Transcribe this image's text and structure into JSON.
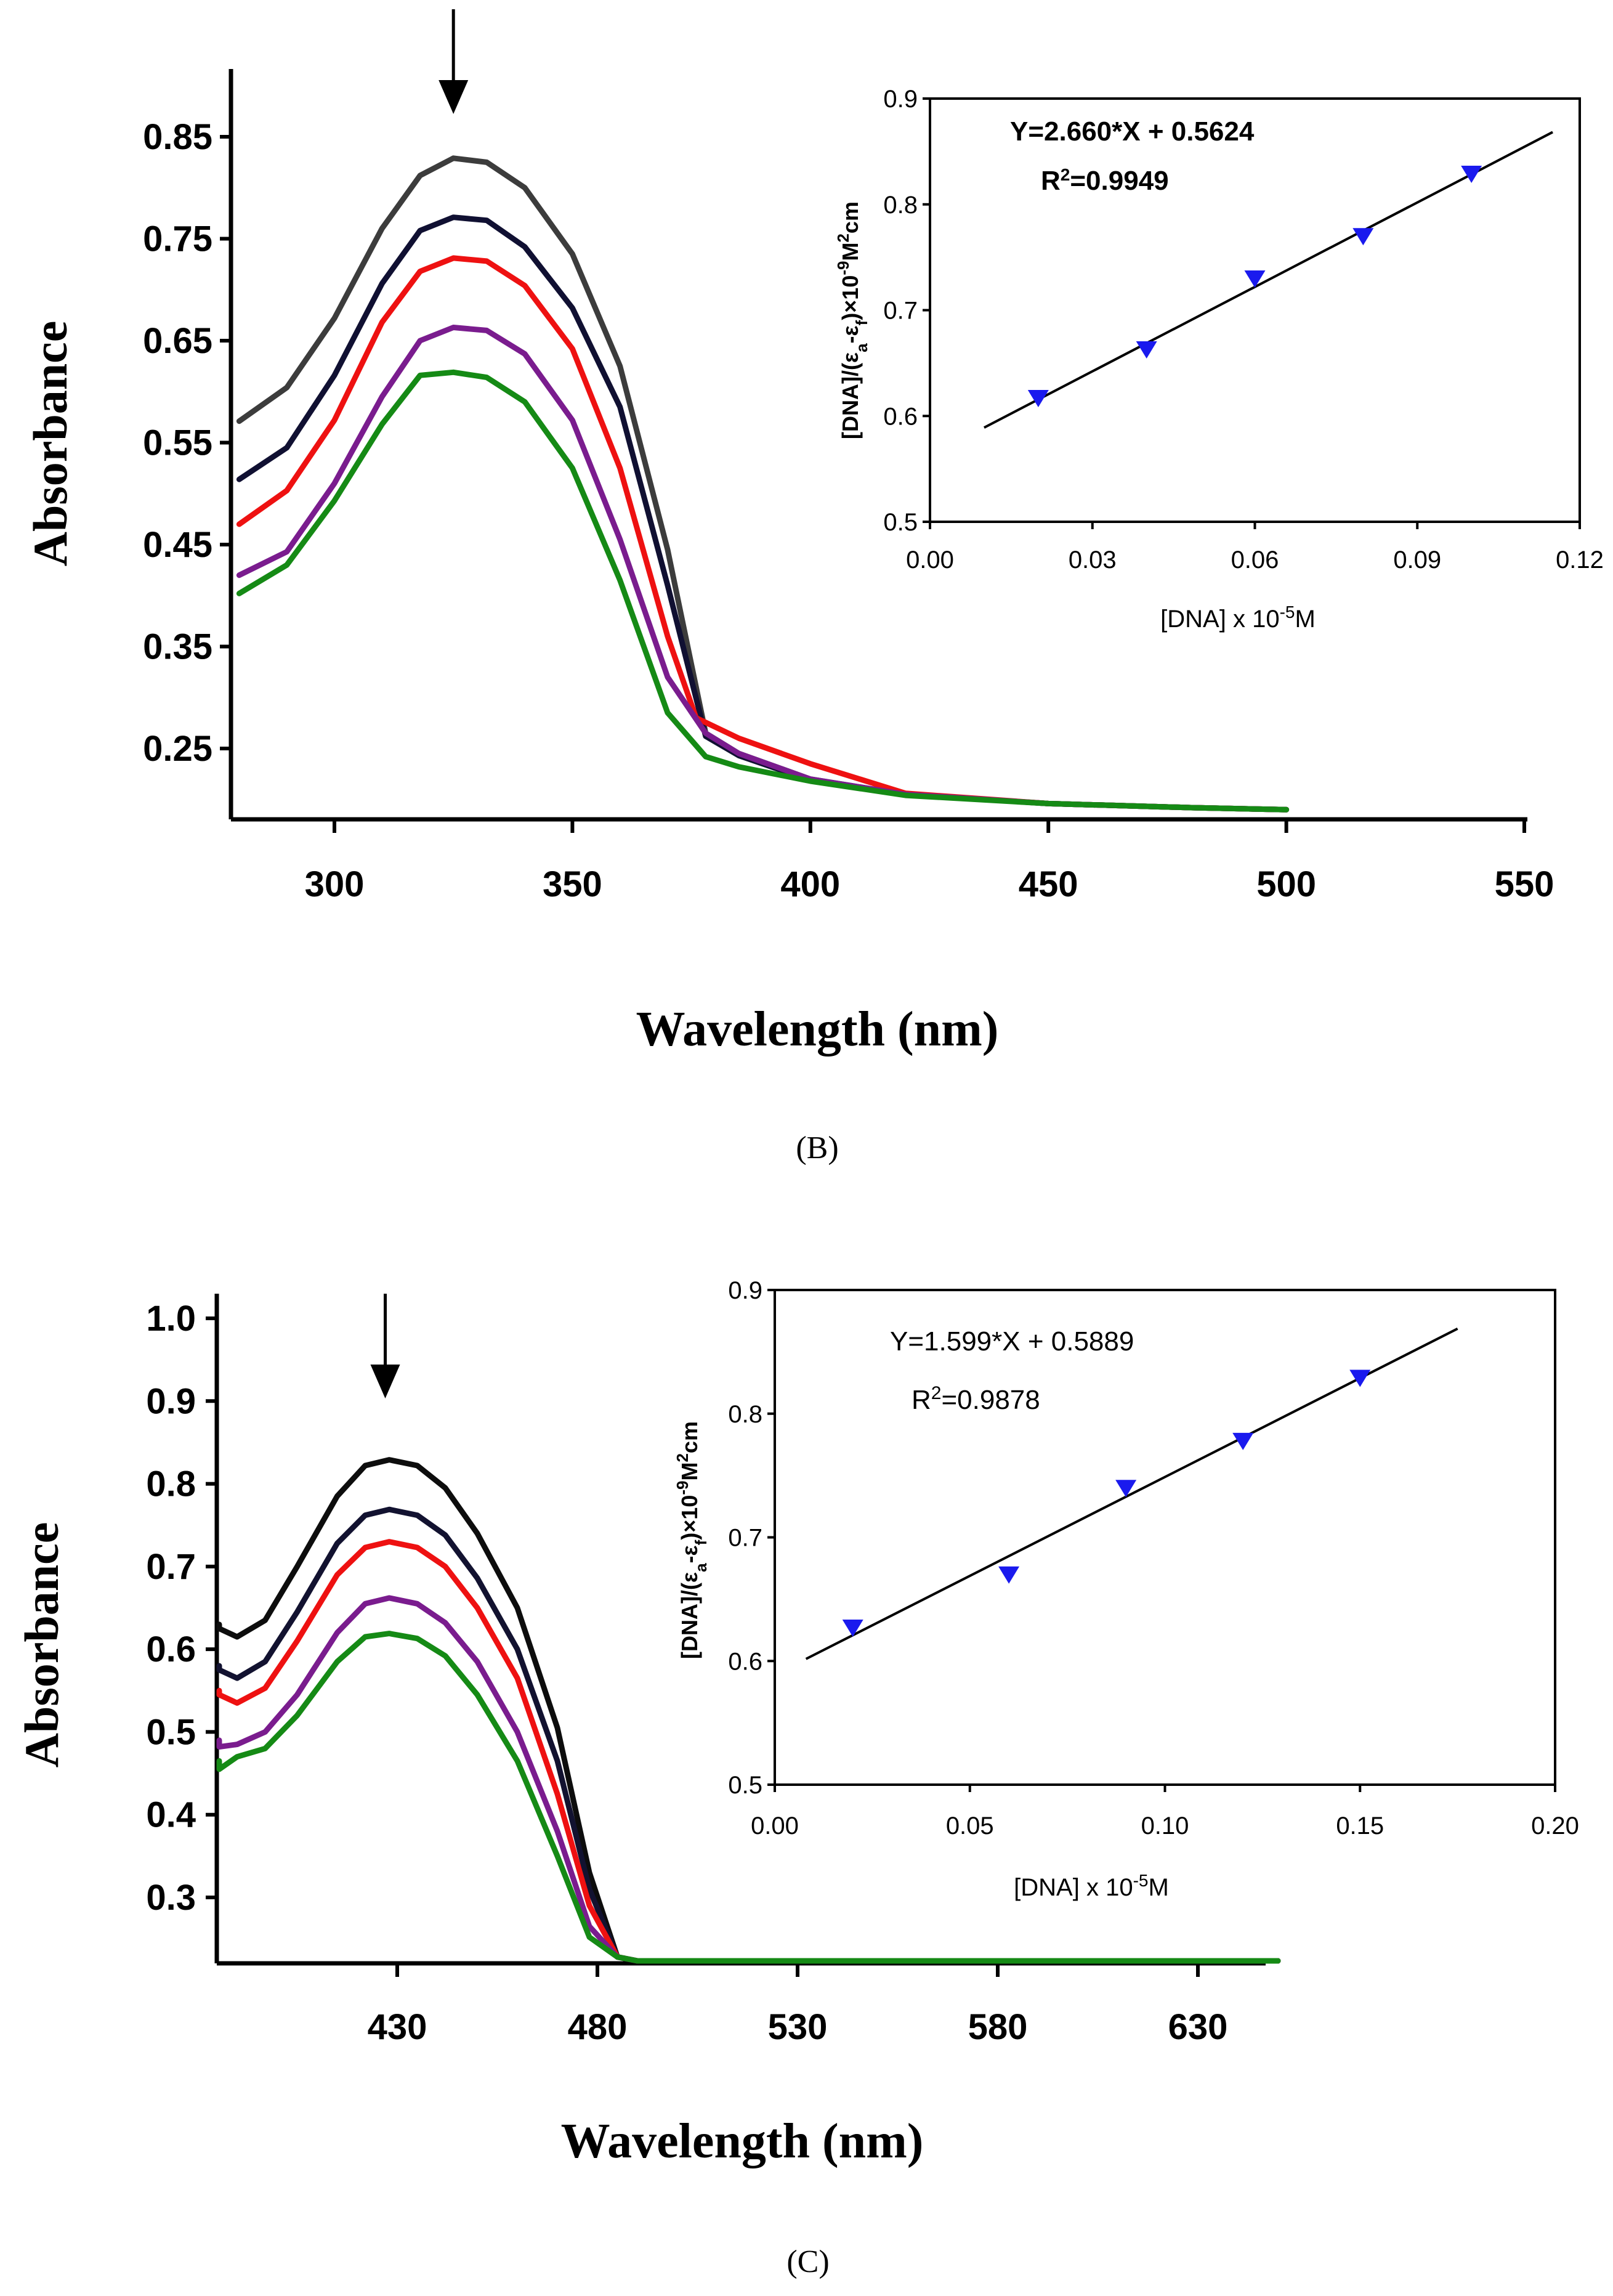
{
  "chart_data": [
    {
      "id": "B",
      "type": "line",
      "caption": "(B)",
      "xlabel": "Wavelength (nm)",
      "ylabel": "Absorbance",
      "xlim": [
        280,
        550
      ],
      "ylim": [
        0.19,
        0.9
      ],
      "xticks": [
        300,
        350,
        400,
        450,
        500,
        550
      ],
      "xtick_labels": [
        "300",
        "350",
        "400",
        "450",
        "500",
        "550"
      ],
      "yticks": [
        0.25,
        0.35,
        0.45,
        0.55,
        0.65,
        0.75,
        0.85
      ],
      "ytick_labels": [
        "0.25",
        "0.35",
        "0.45",
        "0.55",
        "0.65",
        "0.75",
        "0.85"
      ],
      "arrow_x": 325,
      "series": [
        {
          "color": "#3c3c3c",
          "x": [
            280,
            290,
            300,
            310,
            318,
            325,
            332,
            340,
            350,
            360,
            370,
            378,
            385,
            400,
            420,
            450,
            480,
            500
          ],
          "values": [
            0.571,
            0.604,
            0.672,
            0.76,
            0.812,
            0.829,
            0.825,
            0.8,
            0.735,
            0.625,
            0.445,
            0.265,
            0.245,
            0.22,
            0.205,
            0.196,
            0.192,
            0.19
          ]
        },
        {
          "color": "#101032",
          "x": [
            280,
            290,
            300,
            310,
            318,
            325,
            332,
            340,
            350,
            360,
            370,
            378,
            385,
            400,
            420,
            450,
            480,
            500
          ],
          "values": [
            0.514,
            0.545,
            0.616,
            0.706,
            0.758,
            0.771,
            0.768,
            0.742,
            0.682,
            0.585,
            0.41,
            0.262,
            0.243,
            0.219,
            0.205,
            0.196,
            0.192,
            0.19
          ]
        },
        {
          "color": "#ee1111",
          "x": [
            280,
            290,
            300,
            310,
            318,
            325,
            332,
            340,
            350,
            360,
            370,
            376,
            385,
            400,
            420,
            450,
            480,
            500
          ],
          "values": [
            0.47,
            0.503,
            0.572,
            0.668,
            0.718,
            0.731,
            0.728,
            0.704,
            0.642,
            0.525,
            0.36,
            0.28,
            0.26,
            0.235,
            0.206,
            0.196,
            0.192,
            0.19
          ]
        },
        {
          "color": "#7a1c8e",
          "x": [
            280,
            290,
            300,
            310,
            318,
            325,
            332,
            340,
            350,
            360,
            370,
            378,
            385,
            400,
            420,
            450,
            480,
            500
          ],
          "values": [
            0.42,
            0.443,
            0.51,
            0.595,
            0.65,
            0.663,
            0.66,
            0.637,
            0.572,
            0.455,
            0.32,
            0.265,
            0.245,
            0.22,
            0.205,
            0.196,
            0.192,
            0.19
          ]
        },
        {
          "color": "#158a15",
          "x": [
            280,
            290,
            300,
            310,
            318,
            325,
            332,
            340,
            350,
            360,
            370,
            378,
            385,
            400,
            420,
            450,
            480,
            500
          ],
          "values": [
            0.402,
            0.43,
            0.493,
            0.568,
            0.616,
            0.619,
            0.614,
            0.59,
            0.525,
            0.415,
            0.285,
            0.242,
            0.232,
            0.218,
            0.204,
            0.196,
            0.192,
            0.19
          ]
        }
      ],
      "inset": {
        "type": "scatter",
        "xlabel": "[DNA] x 10",
        "xlabel_exp": "-5",
        "xlabel_unit": "M",
        "ylabel_a": "[DNA]/(ε",
        "ylabel_sub_a": "a",
        "ylabel_mid": "-ε",
        "ylabel_sub_f": "f",
        "ylabel_b": ")×10",
        "ylabel_exp": "-9",
        "ylabel_c": "M",
        "ylabel_exp2": "2",
        "ylabel_d": "cm",
        "xlim": [
          0,
          0.12
        ],
        "ylim": [
          0.5,
          0.9
        ],
        "xticks": [
          0,
          0.03,
          0.06,
          0.09,
          0.12
        ],
        "xtick_labels": [
          "0.00",
          "0.03",
          "0.06",
          "0.09",
          "0.12"
        ],
        "yticks": [
          0.5,
          0.6,
          0.7,
          0.8,
          0.9
        ],
        "ytick_labels": [
          "0.5",
          "0.6",
          "0.7",
          "0.8",
          "0.9"
        ],
        "points_x": [
          0.02,
          0.04,
          0.06,
          0.08,
          0.1
        ],
        "points_y": [
          0.617,
          0.663,
          0.73,
          0.77,
          0.829
        ],
        "fit_slope": 2.66,
        "fit_intercept": 0.5624,
        "fit_x": [
          0.01,
          0.115
        ],
        "equation": "Y=2.660*X + 0.5624",
        "r2_prefix": "R",
        "r2_exp": "2",
        "r2_value": "=0.9949",
        "marker_color": "#1a1aee"
      }
    },
    {
      "id": "C",
      "type": "line",
      "caption": "(C)",
      "xlabel": "Wavelength (nm)",
      "ylabel": "Absorbance",
      "xlim": [
        380,
        650
      ],
      "ylim": [
        0.22,
        1.0
      ],
      "xticks": [
        430,
        480,
        530,
        580,
        630
      ],
      "xtick_labels": [
        "430",
        "480",
        "530",
        "580",
        "630"
      ],
      "yticks": [
        0.3,
        0.4,
        0.5,
        0.6,
        0.7,
        0.8,
        0.9,
        1.0
      ],
      "ytick_labels": [
        "0.3",
        "0.4",
        "0.5",
        "0.6",
        "0.7",
        "0.8",
        "0.9",
        "1.0"
      ],
      "arrow_x": 427,
      "series": [
        {
          "color": "#0d0d0d",
          "x": [
            380,
            384,
            390,
            397,
            405,
            415,
            422,
            428,
            435,
            442,
            450,
            460,
            470,
            478,
            485,
            490,
            520,
            560,
            600,
            650
          ],
          "values": [
            0.63,
            0.625,
            0.615,
            0.635,
            0.7,
            0.785,
            0.822,
            0.829,
            0.822,
            0.795,
            0.74,
            0.65,
            0.505,
            0.33,
            0.228,
            0.222,
            0.222,
            0.222,
            0.222,
            0.222
          ]
        },
        {
          "color": "#121230",
          "x": [
            380,
            384,
            390,
            397,
            405,
            415,
            422,
            428,
            435,
            442,
            450,
            460,
            470,
            478,
            485,
            490,
            520,
            560,
            600,
            650
          ],
          "values": [
            0.58,
            0.575,
            0.565,
            0.585,
            0.645,
            0.728,
            0.762,
            0.769,
            0.762,
            0.738,
            0.686,
            0.6,
            0.465,
            0.31,
            0.228,
            0.222,
            0.222,
            0.222,
            0.222,
            0.222
          ]
        },
        {
          "color": "#ee1111",
          "x": [
            380,
            384,
            390,
            397,
            405,
            415,
            422,
            428,
            435,
            442,
            450,
            460,
            470,
            478,
            485,
            490,
            520,
            560,
            600,
            650
          ],
          "values": [
            0.55,
            0.545,
            0.535,
            0.553,
            0.61,
            0.69,
            0.723,
            0.73,
            0.723,
            0.7,
            0.65,
            0.565,
            0.425,
            0.29,
            0.228,
            0.222,
            0.222,
            0.222,
            0.222,
            0.222
          ]
        },
        {
          "color": "#7a1c8e",
          "x": [
            380,
            384,
            390,
            397,
            405,
            415,
            422,
            428,
            435,
            442,
            450,
            460,
            470,
            478,
            485,
            490,
            520,
            560,
            600,
            650
          ],
          "values": [
            0.49,
            0.482,
            0.485,
            0.5,
            0.545,
            0.62,
            0.655,
            0.662,
            0.655,
            0.632,
            0.585,
            0.5,
            0.38,
            0.265,
            0.228,
            0.222,
            0.222,
            0.222,
            0.222,
            0.222
          ]
        },
        {
          "color": "#158a15",
          "x": [
            380,
            384,
            390,
            397,
            405,
            415,
            422,
            428,
            435,
            442,
            450,
            460,
            470,
            478,
            485,
            490,
            520,
            560,
            600,
            650
          ],
          "values": [
            0.465,
            0.455,
            0.47,
            0.48,
            0.52,
            0.585,
            0.615,
            0.619,
            0.613,
            0.592,
            0.545,
            0.465,
            0.35,
            0.252,
            0.228,
            0.222,
            0.222,
            0.222,
            0.222,
            0.222
          ]
        }
      ],
      "inset": {
        "type": "scatter",
        "xlabel": "[DNA] x 10",
        "xlabel_exp": "-5",
        "xlabel_unit": "M",
        "ylabel_a": "[DNA]/(ε",
        "ylabel_sub_a": "a",
        "ylabel_mid": "-ε",
        "ylabel_sub_f": "f",
        "ylabel_b": ")×10",
        "ylabel_exp": "-9",
        "ylabel_c": "M",
        "ylabel_exp2": "2",
        "ylabel_d": "cm",
        "xlim": [
          0,
          0.2
        ],
        "ylim": [
          0.5,
          0.9
        ],
        "xticks": [
          0,
          0.05,
          0.1,
          0.15,
          0.2
        ],
        "xtick_labels": [
          "0.00",
          "0.05",
          "0.10",
          "0.15",
          "0.20"
        ],
        "yticks": [
          0.5,
          0.6,
          0.7,
          0.8,
          0.9
        ],
        "ytick_labels": [
          "0.5",
          "0.6",
          "0.7",
          "0.8",
          "0.9"
        ],
        "points_x": [
          0.02,
          0.06,
          0.09,
          0.12,
          0.15
        ],
        "points_y": [
          0.627,
          0.67,
          0.74,
          0.778,
          0.829
        ],
        "fit_slope": 1.599,
        "fit_intercept": 0.5889,
        "fit_x": [
          0.008,
          0.175
        ],
        "equation": "Y=1.599*X + 0.5889",
        "r2_prefix": "R",
        "r2_exp": "2",
        "r2_value": "=0.9878",
        "marker_color": "#1a1aee"
      }
    }
  ]
}
